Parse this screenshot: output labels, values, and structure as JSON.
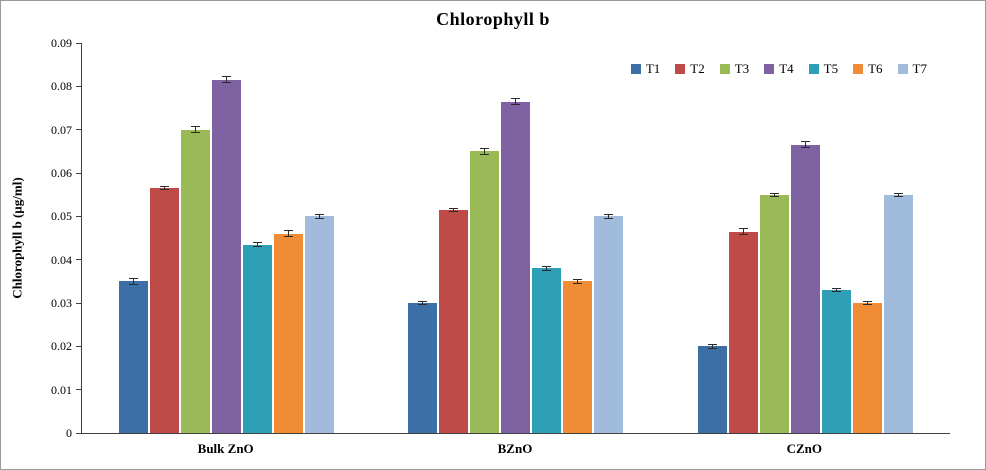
{
  "chart_data": {
    "type": "bar",
    "title": "Chlorophyll b",
    "ylabel": "Chlorophyll b (µg/ml)",
    "xlabel": "",
    "ylim": [
      0,
      0.09
    ],
    "ytick_step": 0.01,
    "yticks": [
      "0",
      "0.01",
      "0.02",
      "0.03",
      "0.04",
      "0.05",
      "0.06",
      "0.07",
      "0.08",
      "0.09"
    ],
    "grid": false,
    "legend_position": "top-right",
    "error_bars": true,
    "categories": [
      "Bulk ZnO",
      "BZnO",
      "CZnO"
    ],
    "series": [
      {
        "name": "T1",
        "color": "#3c6fa5",
        "values": [
          0.035,
          0.03,
          0.02
        ],
        "errors": [
          0.0008,
          0.0005,
          0.0005
        ]
      },
      {
        "name": "T2",
        "color": "#be4b48",
        "values": [
          0.0565,
          0.0515,
          0.0465
        ],
        "errors": [
          0.0005,
          0.0005,
          0.0008
        ]
      },
      {
        "name": "T3",
        "color": "#9aba58",
        "values": [
          0.07,
          0.065,
          0.055
        ],
        "errors": [
          0.0008,
          0.0008,
          0.0005
        ]
      },
      {
        "name": "T4",
        "color": "#7e62a1",
        "values": [
          0.0815,
          0.0765,
          0.0665
        ],
        "errors": [
          0.0008,
          0.0008,
          0.0008
        ]
      },
      {
        "name": "T5",
        "color": "#2e9fb4",
        "values": [
          0.0435,
          0.038,
          0.033
        ],
        "errors": [
          0.0005,
          0.0005,
          0.0005
        ]
      },
      {
        "name": "T6",
        "color": "#ef8c35",
        "values": [
          0.046,
          0.035,
          0.03
        ],
        "errors": [
          0.0008,
          0.0005,
          0.0005
        ]
      },
      {
        "name": "T7",
        "color": "#a0bbdc",
        "values": [
          0.05,
          0.05,
          0.055
        ],
        "errors": [
          0.0005,
          0.0005,
          0.0005
        ]
      }
    ]
  }
}
